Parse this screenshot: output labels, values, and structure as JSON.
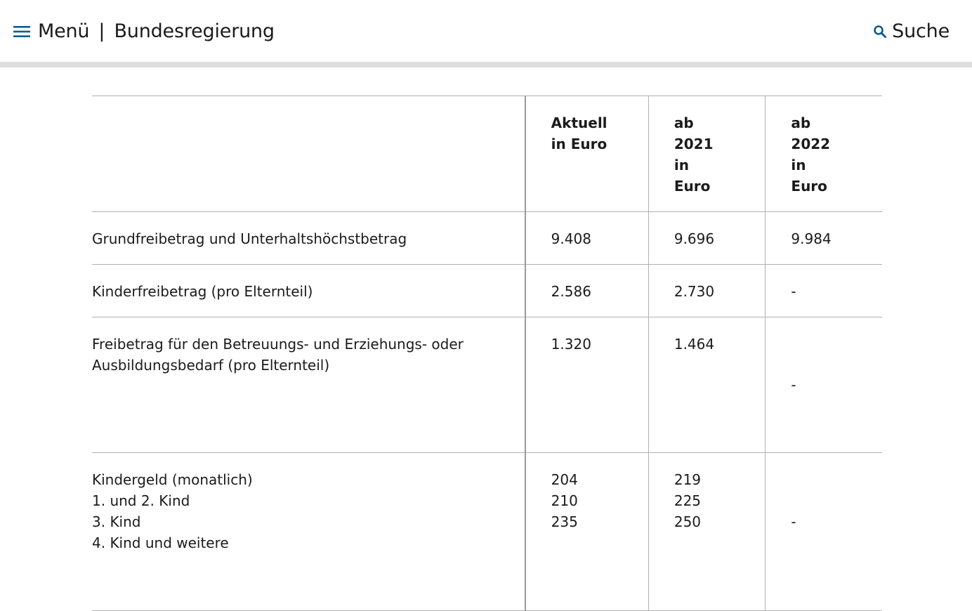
{
  "header": {
    "menu_label": "Menü",
    "separator": "|",
    "brand": "Bundesregierung",
    "search_label": "Suche",
    "menu_icon": "hamburger-icon",
    "search_icon": "magnifier-icon",
    "accent_color": "#0a5e8f"
  },
  "table": {
    "headers": {
      "label": "",
      "current": [
        "Aktuell",
        "in Euro"
      ],
      "y2021": [
        "ab",
        "2021",
        "in",
        "Euro"
      ],
      "y2022": [
        "ab",
        "2022",
        "in",
        "Euro"
      ]
    },
    "rows": [
      {
        "label": [
          "Grundfreibetrag und Unterhaltshöchstbetrag"
        ],
        "current": [
          "9.408"
        ],
        "y2021": [
          "9.696"
        ],
        "y2022": "9.984"
      },
      {
        "label": [
          "Kinderfreibetrag (pro Elternteil)"
        ],
        "current": [
          "2.586"
        ],
        "y2021": [
          "2.730"
        ],
        "y2022": "-"
      },
      {
        "label": [
          "Freibetrag für den Betreuungs- und Erziehungs- oder",
          "Ausbildungsbedarf (pro Elternteil)"
        ],
        "current": [
          "1.320"
        ],
        "y2021": [
          "1.464"
        ],
        "y2022": "-"
      },
      {
        "label": [
          "Kindergeld (monatlich)",
          "1. und 2. Kind",
          "3. Kind",
          "4. Kind und weitere"
        ],
        "current": [
          "204",
          "210",
          "235"
        ],
        "y2021": [
          "219",
          "225",
          "250"
        ],
        "y2022": "-"
      }
    ]
  }
}
